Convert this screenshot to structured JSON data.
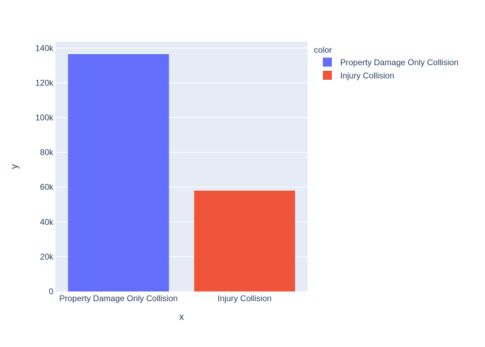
{
  "chart_data": {
    "type": "bar",
    "categories": [
      "Property Damage Only Collision",
      "Injury Collision"
    ],
    "values": [
      136500,
      58000
    ],
    "colors": [
      "#636efa",
      "#ef553b"
    ],
    "xlabel": "x",
    "ylabel": "y",
    "ylim": [
      0,
      143700
    ],
    "yticks": [
      0,
      20000,
      40000,
      60000,
      80000,
      100000,
      120000,
      140000
    ],
    "ytick_labels": [
      "0",
      "20k",
      "40k",
      "60k",
      "80k",
      "100k",
      "120k",
      "140k"
    ],
    "grid": true,
    "plot_background": "#e5ecf6",
    "legend": {
      "title": "color",
      "placement": "top-right",
      "entries": [
        {
          "label": "Property Damage Only Collision",
          "color": "#636efa"
        },
        {
          "label": "Injury Collision",
          "color": "#ef553b"
        }
      ]
    }
  }
}
